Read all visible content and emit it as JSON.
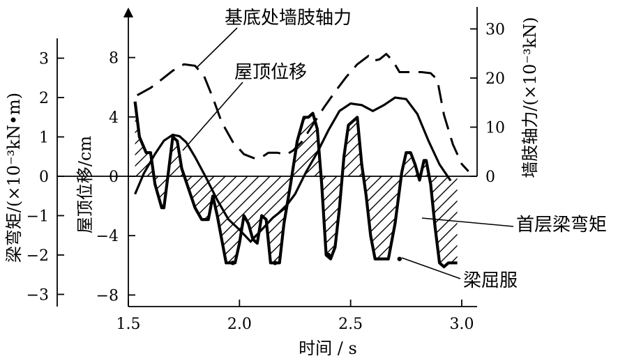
{
  "chart_data": {
    "type": "line",
    "annotations": {
      "axial_force": "基底处墙肢轴力",
      "roof_disp": "屋顶位移",
      "beam_moment": "首层梁弯矩",
      "beam_yield": "梁屈服"
    },
    "x_axis": {
      "label": "时间 / s",
      "range": [
        1.5,
        3.0
      ],
      "ticks": [
        "1.5",
        "2.0",
        "2.5",
        "3.0"
      ],
      "tick_values": [
        1.5,
        2.0,
        2.5,
        3.0
      ]
    },
    "y_axis_moment": {
      "label": "梁弯矩/(×10⁻³kN•m)",
      "range": [
        -3.2,
        3.4
      ],
      "ticks": [
        "3",
        "2",
        "1",
        "0",
        "−1",
        "−2",
        "−3"
      ],
      "tick_values": [
        3,
        2,
        1,
        0,
        -1,
        -2,
        -3
      ]
    },
    "y_axis_disp": {
      "label": "屋顶位移/cm",
      "range": [
        -8.5,
        9
      ],
      "ticks": [
        "8",
        "4",
        "0",
        "−4",
        "−8"
      ],
      "tick_values": [
        8,
        4,
        0,
        -4,
        -8
      ]
    },
    "y_axis_axial": {
      "label": "墙肢轴力/(×10⁻³kN)",
      "range": [
        0,
        34
      ],
      "ticks": [
        "30",
        "20",
        "10",
        "0"
      ],
      "tick_values": [
        30,
        20,
        10,
        0
      ]
    },
    "series": [
      {
        "name": "基底处墙肢轴力",
        "axis": "axial",
        "style": "dashed",
        "x": [
          1.54,
          1.6,
          1.65,
          1.7,
          1.75,
          1.8,
          1.84,
          1.88,
          1.92,
          1.97,
          2.02,
          2.07,
          2.1,
          2.13,
          2.17,
          2.21,
          2.24,
          2.28,
          2.33,
          2.38,
          2.43,
          2.48,
          2.53,
          2.58,
          2.6,
          2.63,
          2.66,
          2.69,
          2.72,
          2.77,
          2.82,
          2.86,
          2.89,
          2.92,
          2.96,
          3.0,
          3.03
        ],
        "y": [
          16.5,
          18,
          19.7,
          21.5,
          22.8,
          22.5,
          20.5,
          16,
          11,
          7,
          4.5,
          3.6,
          3.9,
          4.8,
          4.8,
          4.4,
          5.2,
          7,
          10.5,
          14,
          17.2,
          20.2,
          22.8,
          24.5,
          23.5,
          23.8,
          24.9,
          23.5,
          21.2,
          21.2,
          21.2,
          21,
          19.7,
          12.5,
          6.5,
          2.5,
          1
        ]
      },
      {
        "name": "屋顶位移",
        "axis": "disp",
        "style": "solid",
        "x": [
          1.53,
          1.57,
          1.62,
          1.66,
          1.7,
          1.73,
          1.76,
          1.8,
          1.85,
          1.9,
          1.95,
          2.0,
          2.05,
          2.1,
          2.15,
          2.2,
          2.25,
          2.3,
          2.35,
          2.4,
          2.45,
          2.5,
          2.55,
          2.6,
          2.65,
          2.7,
          2.75,
          2.8,
          2.85,
          2.9,
          2.95
        ],
        "y": [
          -1.2,
          0.2,
          1.5,
          2.4,
          2.8,
          2.7,
          2.3,
          1.3,
          -0.1,
          -1.6,
          -2.9,
          -3.6,
          -4.4,
          -3.6,
          -2.8,
          -2.2,
          -1.2,
          0.3,
          1.6,
          3.1,
          4.4,
          4.9,
          4.8,
          4.4,
          4.8,
          5.3,
          5.2,
          4.2,
          2.4,
          0.8,
          -0.3
        ]
      },
      {
        "name": "首层梁弯矩",
        "axis": "moment",
        "style": "thick",
        "x": [
          1.53,
          1.55,
          1.58,
          1.6,
          1.62,
          1.65,
          1.66,
          1.68,
          1.7,
          1.72,
          1.74,
          1.77,
          1.8,
          1.83,
          1.86,
          1.88,
          1.9,
          1.92,
          1.94,
          1.96,
          1.98,
          2.0,
          2.02,
          2.04,
          2.06,
          2.08,
          2.1,
          2.12,
          2.14,
          2.16,
          2.18,
          2.2,
          2.23,
          2.26,
          2.29,
          2.31,
          2.33,
          2.35,
          2.37,
          2.39,
          2.41,
          2.43,
          2.45,
          2.47,
          2.49,
          2.51,
          2.53,
          2.55,
          2.57,
          2.59,
          2.61,
          2.64,
          2.67,
          2.7,
          2.73,
          2.75,
          2.77,
          2.79,
          2.81,
          2.83,
          2.84,
          2.86,
          2.88,
          2.9,
          2.92,
          2.94,
          2.96,
          2.98
        ],
        "y": [
          1.9,
          1.0,
          0.6,
          0.6,
          -0.2,
          -0.8,
          -0.8,
          0.1,
          1.0,
          0.9,
          0.2,
          -0.3,
          -0.8,
          -1.1,
          -1.1,
          -0.5,
          -1.0,
          -1.6,
          -2.2,
          -2.2,
          -2.2,
          -1.7,
          -1.0,
          -1.2,
          -1.6,
          -1.7,
          -1.0,
          -1.1,
          -2.2,
          -2.2,
          -2.2,
          -1.2,
          -0.2,
          0.9,
          1.5,
          1.5,
          1.6,
          1.2,
          -0.2,
          -2.0,
          -2.1,
          -1.8,
          -0.8,
          0.5,
          1.3,
          1.4,
          1.5,
          0.3,
          -0.5,
          -1.5,
          -2.1,
          -2.1,
          -2.1,
          -1.2,
          0.1,
          0.6,
          0.6,
          0.3,
          -0.1,
          0.4,
          0.4,
          -0.2,
          -1.3,
          -2.2,
          -2.3,
          -2.2,
          -2.2,
          -2.2
        ]
      }
    ],
    "yield_points": {
      "x": [
        1.97,
        2.16,
        2.4,
        2.72
      ],
      "y": [
        -2.2,
        -2.2,
        -2.0,
        -2.1
      ]
    }
  }
}
